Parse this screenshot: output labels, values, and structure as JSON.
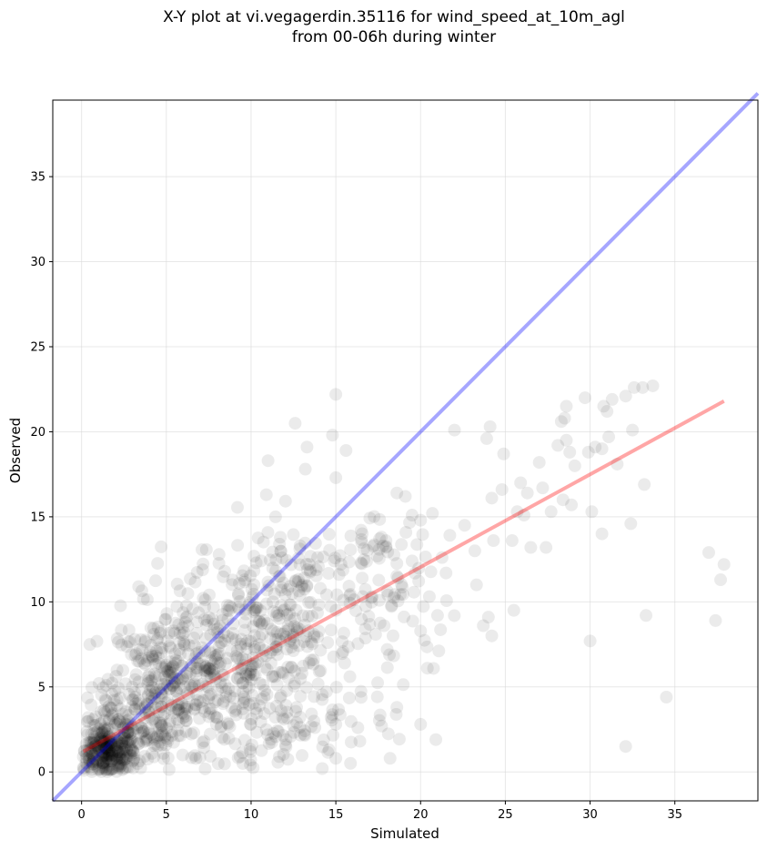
{
  "chart_data": {
    "type": "scatter",
    "title": "X-Y plot at vi.vegagerdin.35116 for wind_speed_at_10m_agl\nfrom 00-06h during winter",
    "xlabel": "Simulated",
    "ylabel": "Observed",
    "xlim": [
      -1.7,
      39.9
    ],
    "ylim": [
      -1.7,
      39.5
    ],
    "xticks": [
      0,
      5,
      10,
      15,
      20,
      25,
      30,
      35
    ],
    "yticks": [
      0,
      5,
      10,
      15,
      20,
      25,
      30,
      35
    ],
    "grid": true,
    "point_color": "#000000",
    "point_alpha": 0.08,
    "identity_line": {
      "color": "#0000ff",
      "alpha": 0.35,
      "from": [
        -1.7,
        -1.7
      ],
      "to": [
        39.9,
        39.9
      ]
    },
    "fit_line": {
      "color": "#ff0000",
      "alpha": 0.35,
      "from": [
        0.1,
        1.2
      ],
      "to": [
        37.9,
        21.8
      ]
    },
    "outlier_points": [
      {
        "x": 15.0,
        "y": 22.2
      },
      {
        "x": 12.6,
        "y": 20.5
      },
      {
        "x": 14.8,
        "y": 19.8
      },
      {
        "x": 13.3,
        "y": 19.1
      },
      {
        "x": 15.6,
        "y": 18.9
      },
      {
        "x": 11.0,
        "y": 18.3
      },
      {
        "x": 13.2,
        "y": 17.8
      },
      {
        "x": 15.0,
        "y": 17.3
      },
      {
        "x": 10.9,
        "y": 16.3
      },
      {
        "x": 18.6,
        "y": 16.4
      },
      {
        "x": 19.1,
        "y": 16.2
      },
      {
        "x": 22.0,
        "y": 20.1
      },
      {
        "x": 24.1,
        "y": 20.3
      },
      {
        "x": 23.9,
        "y": 19.6
      },
      {
        "x": 24.9,
        "y": 18.7
      },
      {
        "x": 24.2,
        "y": 16.1
      },
      {
        "x": 24.8,
        "y": 16.6
      },
      {
        "x": 25.9,
        "y": 17.0
      },
      {
        "x": 26.3,
        "y": 16.4
      },
      {
        "x": 27.0,
        "y": 18.2
      },
      {
        "x": 27.2,
        "y": 16.7
      },
      {
        "x": 25.7,
        "y": 15.3
      },
      {
        "x": 26.1,
        "y": 15.1
      },
      {
        "x": 27.7,
        "y": 15.3
      },
      {
        "x": 28.4,
        "y": 16.0
      },
      {
        "x": 28.9,
        "y": 15.7
      },
      {
        "x": 29.1,
        "y": 18.0
      },
      {
        "x": 28.1,
        "y": 19.2
      },
      {
        "x": 28.6,
        "y": 19.5
      },
      {
        "x": 28.8,
        "y": 18.8
      },
      {
        "x": 29.9,
        "y": 18.8
      },
      {
        "x": 30.3,
        "y": 19.1
      },
      {
        "x": 30.7,
        "y": 19.0
      },
      {
        "x": 31.1,
        "y": 19.7
      },
      {
        "x": 28.3,
        "y": 20.6
      },
      {
        "x": 28.5,
        "y": 20.8
      },
      {
        "x": 28.6,
        "y": 21.5
      },
      {
        "x": 29.7,
        "y": 22.0
      },
      {
        "x": 30.8,
        "y": 21.5
      },
      {
        "x": 31.0,
        "y": 21.2
      },
      {
        "x": 31.3,
        "y": 21.9
      },
      {
        "x": 32.1,
        "y": 22.1
      },
      {
        "x": 32.6,
        "y": 22.6
      },
      {
        "x": 33.1,
        "y": 22.6
      },
      {
        "x": 33.7,
        "y": 22.7
      },
      {
        "x": 32.5,
        "y": 20.1
      },
      {
        "x": 31.6,
        "y": 18.1
      },
      {
        "x": 33.2,
        "y": 16.9
      },
      {
        "x": 30.1,
        "y": 15.3
      },
      {
        "x": 30.7,
        "y": 14.0
      },
      {
        "x": 32.4,
        "y": 14.6
      },
      {
        "x": 25.4,
        "y": 13.6
      },
      {
        "x": 26.5,
        "y": 13.2
      },
      {
        "x": 27.4,
        "y": 13.2
      },
      {
        "x": 24.3,
        "y": 13.6
      },
      {
        "x": 23.2,
        "y": 13.0
      },
      {
        "x": 23.3,
        "y": 11.0
      },
      {
        "x": 24.0,
        "y": 9.1
      },
      {
        "x": 23.7,
        "y": 8.6
      },
      {
        "x": 24.2,
        "y": 8.0
      },
      {
        "x": 25.5,
        "y": 9.5
      },
      {
        "x": 30.0,
        "y": 7.7
      },
      {
        "x": 33.3,
        "y": 9.2
      },
      {
        "x": 34.5,
        "y": 4.4
      },
      {
        "x": 32.1,
        "y": 1.5
      },
      {
        "x": 37.0,
        "y": 12.9
      },
      {
        "x": 37.7,
        "y": 11.3
      },
      {
        "x": 37.9,
        "y": 12.2
      },
      {
        "x": 37.4,
        "y": 8.9
      },
      {
        "x": 20.9,
        "y": 1.9
      },
      {
        "x": 20.0,
        "y": 2.8
      },
      {
        "x": 18.2,
        "y": 0.8
      },
      {
        "x": 15.0,
        "y": 2.8
      },
      {
        "x": 16.3,
        "y": 2.6
      },
      {
        "x": 17.7,
        "y": 2.7
      },
      {
        "x": 18.6,
        "y": 3.8
      },
      {
        "x": 20.4,
        "y": 6.1
      },
      {
        "x": 21.0,
        "y": 9.2
      },
      {
        "x": 21.5,
        "y": 11.7
      },
      {
        "x": 22.6,
        "y": 14.5
      },
      {
        "x": 20.7,
        "y": 15.2
      },
      {
        "x": 20.0,
        "y": 14.8
      },
      {
        "x": 19.5,
        "y": 15.1
      },
      {
        "x": 15.0,
        "y": 0.8
      },
      {
        "x": 14.2,
        "y": 0.2
      },
      {
        "x": 14.6,
        "y": 1.3
      }
    ],
    "clusters": [
      {
        "cx": 1.4,
        "cy": 1.0,
        "sx": 0.9,
        "sy": 0.9,
        "n": 320
      },
      {
        "cx": 2.8,
        "cy": 2.6,
        "sx": 1.6,
        "sy": 1.6,
        "n": 150
      },
      {
        "cx": 5.2,
        "cy": 5.0,
        "sx": 1.8,
        "sy": 2.3,
        "n": 250
      },
      {
        "cx": 9.0,
        "cy": 6.5,
        "sx": 2.7,
        "sy": 3.0,
        "n": 330
      },
      {
        "cx": 13.2,
        "cy": 9.3,
        "sx": 2.9,
        "sy": 3.0,
        "n": 220
      },
      {
        "cx": 18.2,
        "cy": 11.2,
        "sx": 2.1,
        "sy": 2.8,
        "n": 70
      },
      {
        "cx": 11.5,
        "cy": 2.2,
        "sx": 3.2,
        "sy": 1.4,
        "n": 60
      }
    ]
  }
}
